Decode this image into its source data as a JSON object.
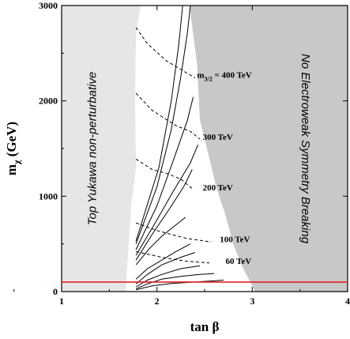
{
  "chart_data": {
    "type": "line",
    "xlabel": "tan β",
    "ylabel": "m",
    "ylabel_sub": "χ",
    "ylabel_unit": "(GeV)",
    "xlim": [
      1,
      4
    ],
    "ylim": [
      0,
      3000
    ],
    "x_ticks": [
      "1",
      "2",
      "3",
      "4"
    ],
    "y_ticks": [
      "0",
      "1000",
      "2000",
      "3000"
    ],
    "grid": false,
    "regions": [
      {
        "name": "Top Yukawa non-perturbative",
        "fill": "#e6e6e6",
        "boundary": [
          [
            1.83,
            3000
          ],
          [
            1.78,
            2700
          ],
          [
            1.77,
            2000
          ],
          [
            1.78,
            1300
          ],
          [
            1.73,
            900
          ],
          [
            1.7,
            450
          ],
          [
            1.68,
            150
          ],
          [
            1.67,
            0
          ]
        ]
      },
      {
        "name": "No Electroweak Symmetry Breaking",
        "fill": "#c8c8c8",
        "boundary": [
          [
            2.34,
            3000
          ],
          [
            2.42,
            2400
          ],
          [
            2.45,
            1800
          ],
          [
            2.55,
            1400
          ],
          [
            2.62,
            1100
          ],
          [
            2.72,
            800
          ],
          [
            2.8,
            500
          ],
          [
            2.9,
            250
          ],
          [
            3.03,
            0
          ]
        ]
      }
    ],
    "hline": {
      "y": 100,
      "color": "#e02020"
    },
    "solid_curves": [
      [
        [
          1.78,
          20
        ],
        [
          1.95,
          60
        ],
        [
          2.15,
          85
        ],
        [
          2.4,
          100
        ],
        [
          2.55,
          110
        ],
        [
          2.7,
          120
        ]
      ],
      [
        [
          1.78,
          30
        ],
        [
          1.9,
          80
        ],
        [
          2.05,
          130
        ],
        [
          2.25,
          160
        ],
        [
          2.45,
          180
        ],
        [
          2.6,
          190
        ]
      ],
      [
        [
          1.78,
          50
        ],
        [
          1.9,
          120
        ],
        [
          2.05,
          180
        ],
        [
          2.25,
          240
        ],
        [
          2.45,
          270
        ]
      ],
      [
        [
          1.78,
          80
        ],
        [
          1.9,
          180
        ],
        [
          2.05,
          280
        ],
        [
          2.25,
          360
        ],
        [
          2.4,
          410
        ]
      ],
      [
        [
          1.78,
          130
        ],
        [
          1.9,
          240
        ],
        [
          2.05,
          330
        ],
        [
          2.2,
          420
        ],
        [
          2.35,
          500
        ]
      ],
      [
        [
          1.78,
          280
        ],
        [
          1.92,
          450
        ],
        [
          2.05,
          580
        ],
        [
          2.2,
          700
        ],
        [
          2.3,
          780
        ]
      ],
      [
        [
          1.78,
          330
        ],
        [
          1.95,
          600
        ],
        [
          2.12,
          850
        ],
        [
          2.28,
          1100
        ],
        [
          2.37,
          1280
        ]
      ],
      [
        [
          1.78,
          380
        ],
        [
          1.97,
          700
        ],
        [
          2.17,
          1050
        ],
        [
          2.35,
          1350
        ],
        [
          2.43,
          1540
        ]
      ],
      [
        [
          1.78,
          440
        ],
        [
          2.0,
          900
        ],
        [
          2.18,
          1400
        ],
        [
          2.32,
          1800
        ],
        [
          2.38,
          2040
        ]
      ],
      [
        [
          1.78,
          500
        ],
        [
          2.0,
          1100
        ],
        [
          2.15,
          1700
        ],
        [
          2.25,
          2250
        ],
        [
          2.32,
          2720
        ],
        [
          2.35,
          3000
        ]
      ],
      [
        [
          1.78,
          530
        ],
        [
          2.02,
          1300
        ],
        [
          2.15,
          2000
        ],
        [
          2.23,
          2600
        ],
        [
          2.27,
          3000
        ]
      ]
    ],
    "dashed_curves": [
      [
        [
          1.78,
          2770
        ],
        [
          1.9,
          2600
        ],
        [
          2.1,
          2420
        ],
        [
          2.3,
          2300
        ],
        [
          2.4,
          2240
        ]
      ],
      [
        [
          1.78,
          2080
        ],
        [
          1.95,
          1900
        ],
        [
          2.2,
          1740
        ],
        [
          2.35,
          1680
        ],
        [
          2.45,
          1600
        ]
      ],
      [
        [
          1.78,
          1390
        ],
        [
          1.95,
          1280
        ],
        [
          2.1,
          1240
        ],
        [
          2.25,
          1180
        ],
        [
          2.37,
          1080
        ]
      ],
      [
        [
          1.78,
          720
        ],
        [
          2.0,
          640
        ],
        [
          2.3,
          560
        ],
        [
          2.57,
          520
        ]
      ],
      [
        [
          1.78,
          420
        ],
        [
          2.05,
          360
        ],
        [
          2.3,
          320
        ],
        [
          2.55,
          300
        ]
      ]
    ],
    "contour_labels": [
      {
        "text": "m",
        "sub": "3/2",
        "rest": " = 400 TeV",
        "x": 2.42,
        "y": 2240
      },
      {
        "text": "300 TeV",
        "x": 2.48,
        "y": 1590
      },
      {
        "text": "200 TeV",
        "x": 2.48,
        "y": 1060
      },
      {
        "text": "100 TeV",
        "x": 2.66,
        "y": 520
      },
      {
        "text": "60 TeV",
        "x": 2.72,
        "y": 290
      }
    ],
    "region_labels": [
      {
        "text": "Top Yukawa non-perturbative",
        "x": 1.36,
        "y": 1500
      },
      {
        "text": "No Electroweak Symmetry Breaking",
        "x": 3.52,
        "y": 1500
      }
    ]
  }
}
